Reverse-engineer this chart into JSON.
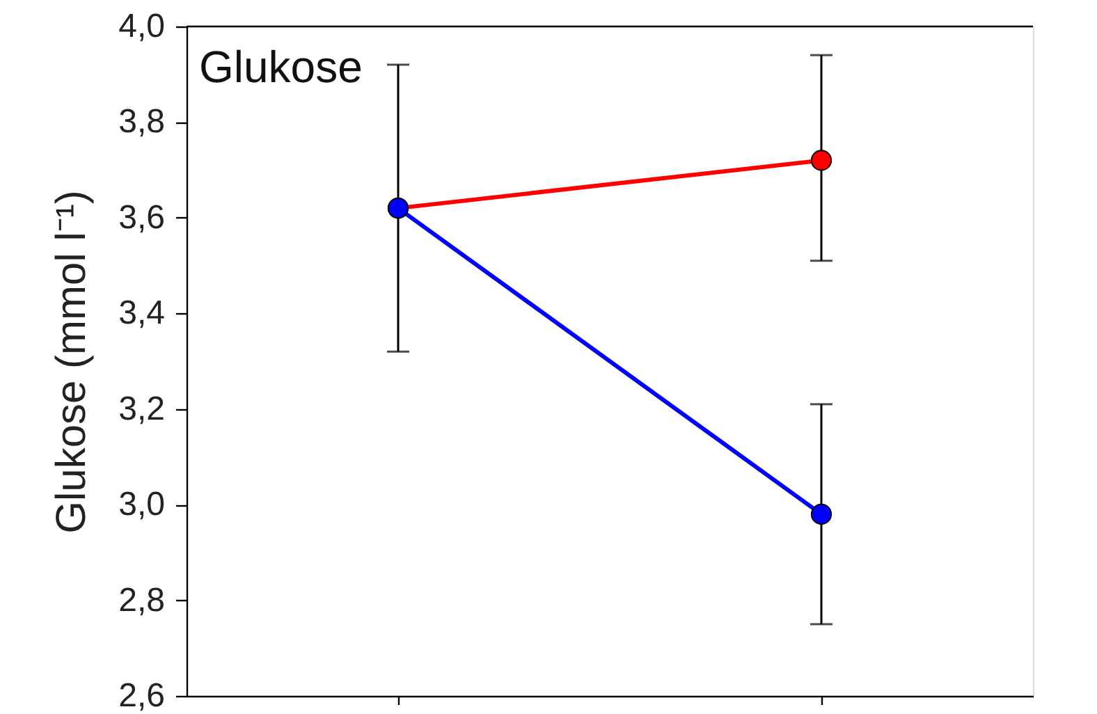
{
  "chart_data": {
    "type": "line",
    "ylabel": "Glukose (mmol l⁻¹)",
    "annotations": [
      "Glukose"
    ],
    "categories": [
      null,
      null
    ],
    "series": [
      {
        "color": "#ff0000",
        "values": [
          3.62,
          3.72
        ],
        "errors": [
          null,
          [
            3.51,
            3.94
          ]
        ]
      },
      {
        "color": "#0000ff",
        "values": [
          3.62,
          2.98
        ],
        "errors": [
          [
            3.32,
            3.92
          ],
          [
            2.75,
            3.21
          ]
        ]
      }
    ],
    "ylim": [
      2.6,
      4.0
    ],
    "yticks": [
      {
        "value": 2.6,
        "label": "2,6"
      },
      {
        "value": 2.8,
        "label": "2,8"
      },
      {
        "value": 3.0,
        "label": "3,0"
      },
      {
        "value": 3.2,
        "label": "3,2"
      },
      {
        "value": 3.4,
        "label": "3,4"
      },
      {
        "value": 3.6,
        "label": "3,6"
      },
      {
        "value": 3.8,
        "label": "3,8"
      },
      {
        "value": 4.0,
        "label": "4,0"
      }
    ],
    "grid": false,
    "marker": "circle",
    "line_style": "solid"
  }
}
